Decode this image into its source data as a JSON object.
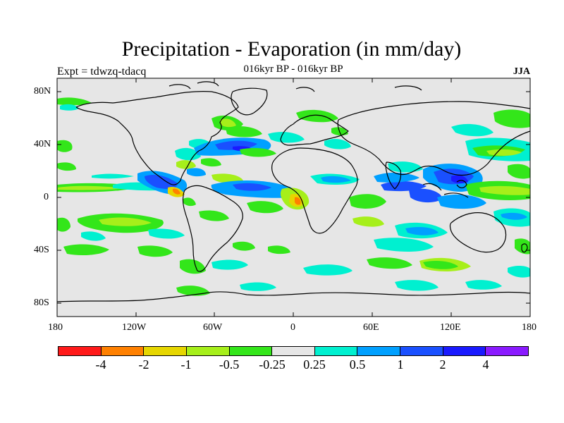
{
  "title": "Precipitation - Evaporation (in mm/day)",
  "experiment": "Expt = tdwzq-tdacq",
  "period": "016kyr BP - 016kyr BP",
  "season": "JJA",
  "lat_labels": [
    "80N",
    "40N",
    "0",
    "40S",
    "80S"
  ],
  "lon_labels": [
    "180",
    "120W",
    "60W",
    "0",
    "60E",
    "120E",
    "180"
  ],
  "colorbar": {
    "colors": [
      "#ff1a1a",
      "#ff8000",
      "#e6d600",
      "#a6ef1a",
      "#33e61a",
      "#e6e6e6",
      "#00f0d0",
      "#00a0ff",
      "#1a50ff",
      "#1a1aff",
      "#8a1aff"
    ],
    "labels": [
      "-4",
      "-2",
      "-1",
      "-0.5",
      "-0.25",
      "0.25",
      "0.5",
      "1",
      "2",
      "4"
    ]
  },
  "map_colors": {
    "ocean": "#e6e6e6",
    "coast": "#000000"
  }
}
